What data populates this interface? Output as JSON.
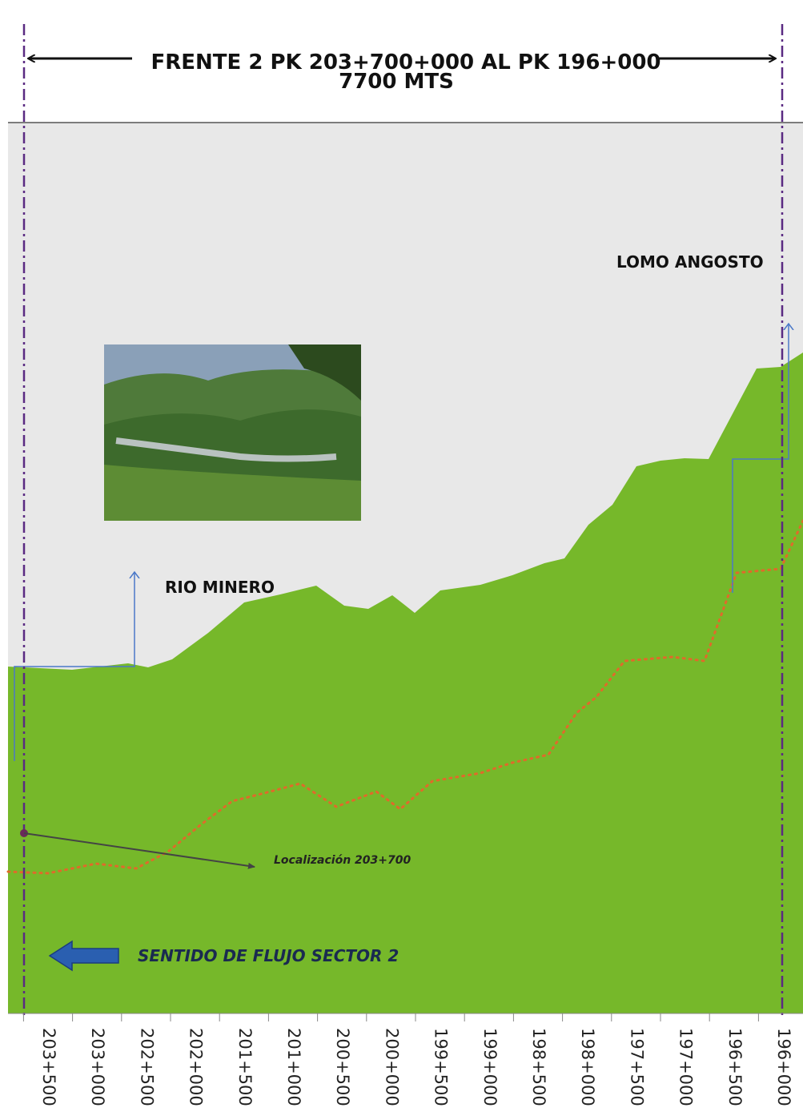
{
  "header": {
    "title_line1": "FRENTE 2 PK 203+700+000 AL PK 196+000",
    "title_line2": "7700 MTS"
  },
  "labels": {
    "lomo": "LOMO ANGOSTO",
    "rio": "RIO MINERO",
    "localizacion": "Localización 203+700",
    "flujo": "SENTIDO DE FLUJO SECTOR 2"
  },
  "axis": {
    "labels": [
      "203+500",
      "203+000",
      "202+500",
      "202+000",
      "201+500",
      "201+000",
      "200+500",
      "200+000",
      "199+500",
      "199+000",
      "198+500",
      "198+000",
      "197+500",
      "197+000",
      "196+500",
      "196+000"
    ]
  }
}
